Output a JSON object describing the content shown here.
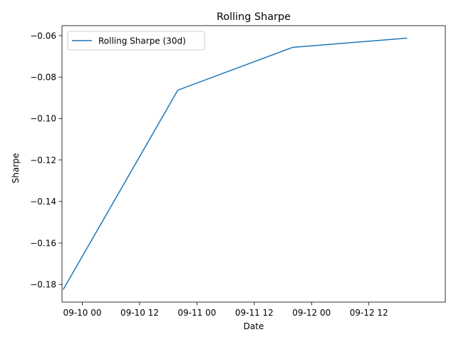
{
  "chart_data": {
    "type": "line",
    "title": "Rolling Sharpe",
    "xlabel": "Date",
    "ylabel": "Sharpe",
    "x_tick_labels": [
      "09-10 00",
      "09-10 12",
      "09-11 00",
      "09-11 12",
      "09-12 00",
      "09-12 12"
    ],
    "y_ticks": [
      -0.18,
      -0.16,
      -0.14,
      -0.12,
      -0.1,
      -0.08,
      -0.06
    ],
    "y_tick_labels": [
      "−0.18",
      "−0.16",
      "−0.14",
      "−0.12",
      "−0.10",
      "−0.08",
      "−0.06"
    ],
    "xlim": [
      "2023-09-09 19:45",
      "2023-09-13 04:00"
    ],
    "ylim": [
      -0.1885,
      -0.0552
    ],
    "grid": false,
    "legend_position": "top-left",
    "series": [
      {
        "name": "Rolling Sharpe (30d)",
        "color": "#1f77b4",
        "x": [
          "2023-09-09 20:00",
          "2023-09-10 20:00",
          "2023-09-11 20:00",
          "2023-09-12 20:00"
        ],
        "y": [
          -0.1825,
          -0.0863,
          -0.0657,
          -0.0612
        ]
      }
    ]
  }
}
